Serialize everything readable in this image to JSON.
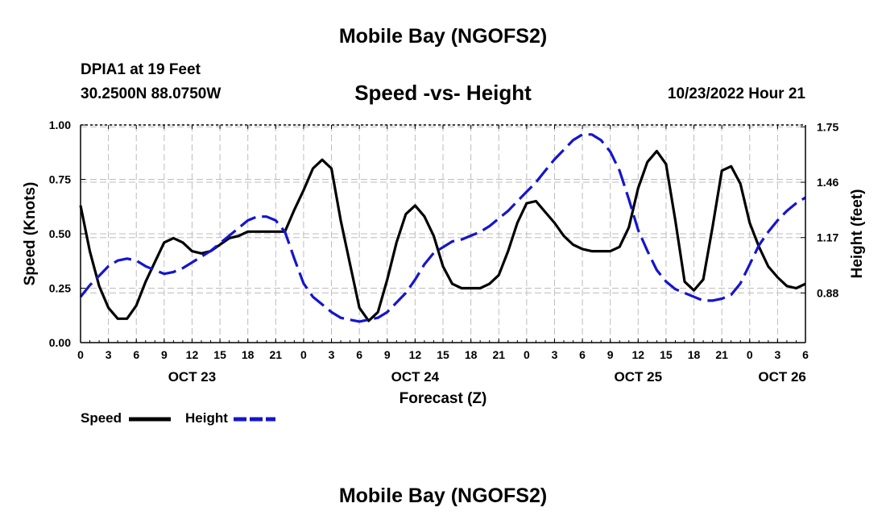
{
  "header": {
    "title": "Mobile Bay (NGOFS2)",
    "station": "DPIA1 at 19 Feet",
    "coords": "30.2500N  88.0750W",
    "subtitle": "Speed -vs- Height",
    "datetime": "10/23/2022 Hour 21"
  },
  "footer": {
    "title": "Mobile Bay (NGOFS2)"
  },
  "legend": {
    "speed_label": "Speed",
    "height_label": "Height"
  },
  "colors": {
    "speed": "#000000",
    "height": "#1515cc",
    "grid": "#bdbdbd"
  },
  "chart_data": {
    "type": "line",
    "title": "Speed -vs- Height",
    "xlabel": "Forecast (Z)",
    "ylabel": "Speed (Knots)",
    "y2label": "Height (feet)",
    "xlim": [
      0,
      78
    ],
    "ylim": [
      0,
      1.0
    ],
    "y2lim": [
      0.62,
      1.76
    ],
    "x_ticks": [
      0,
      3,
      6,
      9,
      12,
      15,
      18,
      21,
      24,
      27,
      30,
      33,
      36,
      39,
      42,
      45,
      48,
      51,
      54,
      57,
      60,
      63,
      66,
      69,
      72,
      75,
      78
    ],
    "x_tick_labels": [
      "0",
      "3",
      "6",
      "9",
      "12",
      "15",
      "18",
      "21",
      "0",
      "3",
      "6",
      "9",
      "12",
      "15",
      "18",
      "21",
      "0",
      "3",
      "6",
      "9",
      "12",
      "15",
      "18",
      "21",
      "0",
      "3",
      "6"
    ],
    "day_labels": [
      {
        "x": 12,
        "label": "OCT 23"
      },
      {
        "x": 36,
        "label": "OCT 24"
      },
      {
        "x": 60,
        "label": "OCT 25"
      },
      {
        "x": 75.5,
        "label": "OCT 26"
      }
    ],
    "y_ticks": [
      0.0,
      0.25,
      0.5,
      0.75,
      1.0
    ],
    "y_tick_labels": [
      "0.00",
      "0.25",
      "0.50",
      "0.75",
      "1.00"
    ],
    "y2_ticks": [
      0.88,
      1.17,
      1.46,
      1.75
    ],
    "y2_tick_labels": [
      "0.88",
      "1.17",
      "1.46",
      "1.75"
    ],
    "grid": true,
    "legend_position": "bottom-left",
    "series": [
      {
        "name": "Speed",
        "axis": "left",
        "style": "solid",
        "x": [
          0,
          1,
          2,
          3,
          4,
          5,
          6,
          7,
          8,
          9,
          10,
          11,
          12,
          13,
          14,
          15,
          16,
          17,
          18,
          19,
          20,
          21,
          22,
          23,
          24,
          25,
          26,
          27,
          28,
          29,
          30,
          31,
          32,
          33,
          34,
          35,
          36,
          37,
          38,
          39,
          40,
          41,
          42,
          43,
          44,
          45,
          46,
          47,
          48,
          49,
          50,
          51,
          52,
          53,
          54,
          55,
          56,
          57,
          58,
          59,
          60,
          61,
          62,
          63,
          64,
          65,
          66,
          67,
          68,
          69,
          70,
          71,
          72,
          73,
          74,
          75,
          76,
          77,
          78
        ],
        "values": [
          0.63,
          0.42,
          0.26,
          0.16,
          0.11,
          0.11,
          0.17,
          0.28,
          0.37,
          0.46,
          0.48,
          0.46,
          0.42,
          0.41,
          0.42,
          0.45,
          0.48,
          0.49,
          0.51,
          0.51,
          0.51,
          0.51,
          0.51,
          0.61,
          0.7,
          0.8,
          0.84,
          0.8,
          0.56,
          0.36,
          0.16,
          0.1,
          0.14,
          0.29,
          0.46,
          0.59,
          0.63,
          0.58,
          0.49,
          0.35,
          0.27,
          0.25,
          0.25,
          0.25,
          0.27,
          0.31,
          0.42,
          0.55,
          0.64,
          0.65,
          0.6,
          0.55,
          0.49,
          0.45,
          0.43,
          0.42,
          0.42,
          0.42,
          0.44,
          0.53,
          0.71,
          0.83,
          0.88,
          0.82,
          0.56,
          0.28,
          0.24,
          0.29,
          0.53,
          0.79,
          0.81,
          0.73,
          0.55,
          0.44,
          0.35,
          0.3,
          0.26,
          0.25,
          0.27
        ]
      },
      {
        "name": "Height",
        "axis": "right",
        "style": "dashed",
        "x": [
          0,
          1,
          2,
          3,
          4,
          5,
          6,
          7,
          8,
          9,
          10,
          11,
          12,
          13,
          14,
          15,
          16,
          17,
          18,
          19,
          20,
          21,
          22,
          23,
          24,
          25,
          26,
          27,
          28,
          29,
          30,
          31,
          32,
          33,
          34,
          35,
          36,
          37,
          38,
          39,
          40,
          41,
          42,
          43,
          44,
          45,
          46,
          47,
          48,
          49,
          50,
          51,
          52,
          53,
          54,
          55,
          56,
          57,
          58,
          59,
          60,
          61,
          62,
          63,
          64,
          65,
          66,
          67,
          68,
          69,
          70,
          71,
          72,
          73,
          74,
          75,
          76,
          77,
          78
        ],
        "values": [
          0.86,
          0.92,
          0.97,
          1.02,
          1.05,
          1.06,
          1.05,
          1.02,
          1.0,
          0.98,
          0.99,
          1.01,
          1.04,
          1.07,
          1.1,
          1.14,
          1.18,
          1.22,
          1.26,
          1.28,
          1.28,
          1.26,
          1.2,
          1.06,
          0.93,
          0.86,
          0.82,
          0.78,
          0.75,
          0.74,
          0.73,
          0.74,
          0.75,
          0.78,
          0.83,
          0.88,
          0.95,
          1.03,
          1.09,
          1.12,
          1.15,
          1.16,
          1.18,
          1.2,
          1.23,
          1.27,
          1.31,
          1.36,
          1.41,
          1.46,
          1.52,
          1.58,
          1.63,
          1.68,
          1.71,
          1.71,
          1.68,
          1.62,
          1.52,
          1.37,
          1.21,
          1.1,
          1.0,
          0.94,
          0.9,
          0.88,
          0.86,
          0.84,
          0.84,
          0.85,
          0.87,
          0.93,
          1.03,
          1.13,
          1.2,
          1.26,
          1.31,
          1.35,
          1.38
        ]
      }
    ]
  }
}
